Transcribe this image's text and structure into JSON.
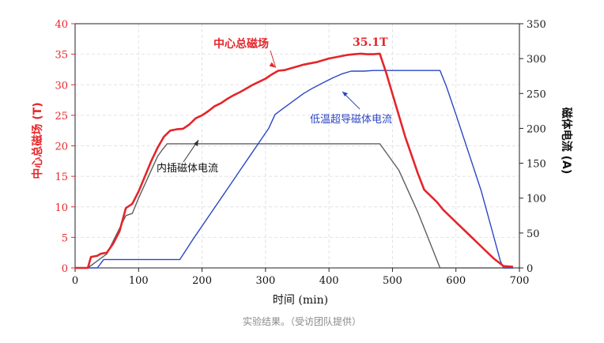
{
  "caption": "实验结果。（受访团队提供）",
  "colors": {
    "left_axis": "#e8272a",
    "right_axis": "#1a1a1a",
    "center_field": "#e3262b",
    "lts_current": "#2b46c4",
    "insert_current": "#5e5e5e"
  },
  "chart_data": {
    "type": "line",
    "xlabel": "时间 (min)",
    "ylabel_left": "中心总磁场 (T)",
    "ylabel_right": "磁体电流 (A)",
    "xlim": [
      0,
      700
    ],
    "ylim_left": [
      0,
      40
    ],
    "ylim_right": [
      0,
      350
    ],
    "x_ticks": [
      0,
      100,
      200,
      300,
      400,
      500,
      600,
      700
    ],
    "y_left_ticks": [
      0,
      5,
      10,
      15,
      20,
      25,
      30,
      35,
      40
    ],
    "y_right_ticks": [
      0,
      50,
      100,
      150,
      200,
      250,
      300,
      350
    ],
    "grid": true,
    "series": [
      {
        "name": "中心总磁场",
        "axis": "left",
        "points": [
          [
            0,
            0
          ],
          [
            10,
            0
          ],
          [
            20,
            0
          ],
          [
            25,
            1.8
          ],
          [
            35,
            2
          ],
          [
            40,
            2.3
          ],
          [
            50,
            2.5
          ],
          [
            60,
            4
          ],
          [
            70,
            6
          ],
          [
            80,
            9.8
          ],
          [
            90,
            10.5
          ],
          [
            100,
            12.5
          ],
          [
            110,
            15
          ],
          [
            120,
            17.5
          ],
          [
            130,
            19.7
          ],
          [
            140,
            21.5
          ],
          [
            150,
            22.5
          ],
          [
            160,
            22.7
          ],
          [
            170,
            22.8
          ],
          [
            180,
            23.5
          ],
          [
            190,
            24.5
          ],
          [
            200,
            25
          ],
          [
            210,
            25.7
          ],
          [
            220,
            26.5
          ],
          [
            230,
            27
          ],
          [
            240,
            27.7
          ],
          [
            250,
            28.3
          ],
          [
            260,
            28.8
          ],
          [
            270,
            29.4
          ],
          [
            280,
            30
          ],
          [
            290,
            30.5
          ],
          [
            300,
            31
          ],
          [
            310,
            31.7
          ],
          [
            320,
            32.3
          ],
          [
            330,
            32.4
          ],
          [
            340,
            32.7
          ],
          [
            350,
            33
          ],
          [
            360,
            33.3
          ],
          [
            370,
            33.5
          ],
          [
            380,
            33.7
          ],
          [
            390,
            34
          ],
          [
            400,
            34.3
          ],
          [
            410,
            34.5
          ],
          [
            420,
            34.7
          ],
          [
            430,
            34.9
          ],
          [
            440,
            35
          ],
          [
            450,
            35.1
          ],
          [
            460,
            35
          ],
          [
            470,
            35
          ],
          [
            480,
            35.1
          ],
          [
            490,
            32
          ],
          [
            500,
            28.5
          ],
          [
            510,
            25
          ],
          [
            520,
            21.5
          ],
          [
            530,
            18.5
          ],
          [
            540,
            15.5
          ],
          [
            550,
            12.8
          ],
          [
            560,
            11.8
          ],
          [
            570,
            10.8
          ],
          [
            580,
            9.5
          ],
          [
            600,
            7.5
          ],
          [
            620,
            5.5
          ],
          [
            640,
            3.5
          ],
          [
            660,
            1.5
          ],
          [
            675,
            0.3
          ],
          [
            690,
            0.2
          ]
        ]
      },
      {
        "name": "低温超导磁体电流",
        "axis": "right",
        "points": [
          [
            0,
            0
          ],
          [
            35,
            0
          ],
          [
            45,
            12
          ],
          [
            165,
            12
          ],
          [
            185,
            40
          ],
          [
            200,
            60
          ],
          [
            215,
            80
          ],
          [
            230,
            100
          ],
          [
            245,
            120
          ],
          [
            260,
            140
          ],
          [
            275,
            160
          ],
          [
            290,
            180
          ],
          [
            305,
            200
          ],
          [
            315,
            220
          ],
          [
            330,
            230
          ],
          [
            345,
            240
          ],
          [
            360,
            250
          ],
          [
            375,
            258
          ],
          [
            390,
            265
          ],
          [
            405,
            272
          ],
          [
            420,
            278
          ],
          [
            435,
            282
          ],
          [
            455,
            282
          ],
          [
            470,
            283
          ],
          [
            575,
            283
          ],
          [
            585,
            260
          ],
          [
            600,
            220
          ],
          [
            620,
            165
          ],
          [
            640,
            110
          ],
          [
            655,
            60
          ],
          [
            670,
            10
          ],
          [
            675,
            0
          ],
          [
            690,
            0
          ]
        ]
      },
      {
        "name": "内插磁体电流",
        "axis": "right",
        "points": [
          [
            0,
            0
          ],
          [
            20,
            0
          ],
          [
            50,
            20
          ],
          [
            80,
            75
          ],
          [
            90,
            78
          ],
          [
            100,
            100
          ],
          [
            110,
            120
          ],
          [
            120,
            140
          ],
          [
            130,
            160
          ],
          [
            138,
            170
          ],
          [
            145,
            178
          ],
          [
            480,
            178
          ],
          [
            510,
            140
          ],
          [
            540,
            80
          ],
          [
            575,
            0
          ],
          [
            690,
            0
          ]
        ]
      }
    ],
    "annotations": [
      {
        "text": "中心总磁场",
        "series": "中心总磁场"
      },
      {
        "text": "35.1T",
        "series": "中心总磁场"
      },
      {
        "text": "低温超导磁体电流",
        "series": "低温超导磁体电流"
      },
      {
        "text": "内插磁体电流",
        "series": "内插磁体电流"
      }
    ]
  }
}
